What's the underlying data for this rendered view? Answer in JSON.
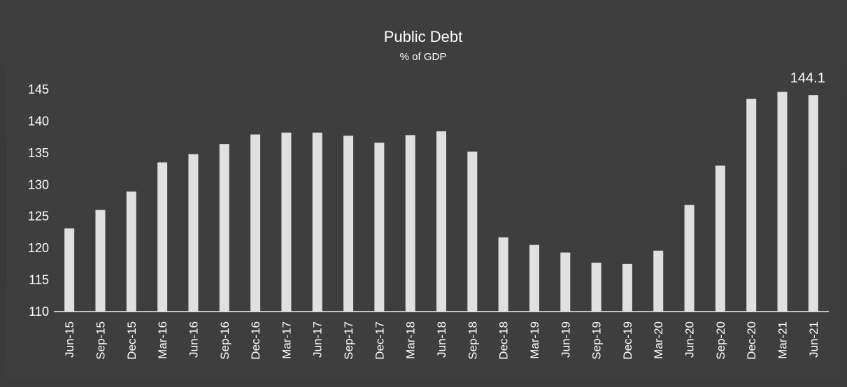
{
  "chart_data": {
    "type": "bar",
    "title": "Public Debt",
    "subtitle": "% of GDP",
    "xlabel": "",
    "ylabel": "",
    "ylim": [
      110,
      145
    ],
    "yticks": [
      110,
      115,
      120,
      125,
      130,
      135,
      140,
      145
    ],
    "grid": false,
    "legend": "none",
    "bar_color": "#e0e0e0",
    "categories": [
      "Jun-15",
      "Sep-15",
      "Dec-15",
      "Mar-16",
      "Jun-16",
      "Sep-16",
      "Dec-16",
      "Mar-17",
      "Jun-17",
      "Sep-17",
      "Dec-17",
      "Mar-18",
      "Jun-18",
      "Sep-18",
      "Dec-18",
      "Mar-19",
      "Jun-19",
      "Sep-19",
      "Dec-19",
      "Mar-20",
      "Jun-20",
      "Sep-20",
      "Dec-20",
      "Mar-21",
      "Jun-21"
    ],
    "values": [
      123.1,
      126.0,
      128.9,
      133.5,
      134.8,
      136.4,
      137.9,
      138.2,
      138.2,
      137.7,
      136.6,
      137.8,
      138.4,
      135.2,
      121.7,
      120.5,
      119.3,
      117.7,
      117.5,
      119.6,
      126.8,
      133.0,
      143.5,
      144.6,
      144.1
    ],
    "data_labels": [
      {
        "category": "Jun-21",
        "text": "144.1"
      }
    ]
  }
}
